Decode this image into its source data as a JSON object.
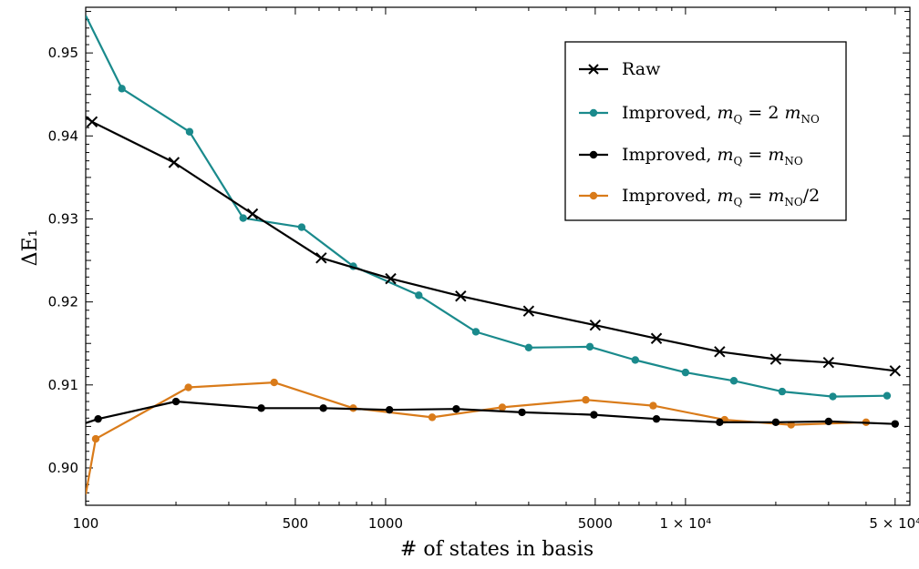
{
  "chart_data": {
    "type": "line",
    "title": "",
    "xlabel": "# of states in basis",
    "ylabel": "ΔE₁",
    "xscale": "log",
    "xlim": [
      100,
      56000
    ],
    "ylim": [
      0.8955,
      0.9555
    ],
    "grid": false,
    "legend_position": "top-right",
    "x_ticks": [
      {
        "value": 100,
        "label": "100"
      },
      {
        "value": 500,
        "label": "500"
      },
      {
        "value": 1000,
        "label": "1000"
      },
      {
        "value": 5000,
        "label": "5000"
      },
      {
        "value": 10000,
        "label": "1 × 10⁴"
      },
      {
        "value": 50000,
        "label": "5 × 10⁴"
      }
    ],
    "y_ticks": [
      {
        "value": 0.9,
        "label": "0.90"
      },
      {
        "value": 0.91,
        "label": "0.91"
      },
      {
        "value": 0.92,
        "label": "0.92"
      },
      {
        "value": 0.93,
        "label": "0.93"
      },
      {
        "value": 0.94,
        "label": "0.94"
      },
      {
        "value": 0.95,
        "label": "0.95"
      }
    ],
    "series": [
      {
        "name": "Raw",
        "legend_label": "Raw",
        "color": "#000000",
        "marker": "x",
        "line_from": 100,
        "line_value": 0.9423,
        "x": [
          105,
          197,
          360,
          610,
          1040,
          1780,
          3000,
          5000,
          8000,
          13000,
          20000,
          30000,
          50000
        ],
        "y": [
          0.9417,
          0.9368,
          0.9306,
          0.9253,
          0.9228,
          0.9207,
          0.9189,
          0.9172,
          0.9156,
          0.914,
          0.9131,
          0.9127,
          0.9117
        ]
      },
      {
        "name": "Improved, m_Q = 2 m_NO",
        "legend_label": "Improved,",
        "legend_eq": "2 m",
        "color": "#1a8a8c",
        "marker": "o",
        "line_from": 100,
        "line_value": 0.9545,
        "x": [
          132,
          222,
          335,
          525,
          780,
          1290,
          2000,
          3000,
          4800,
          6800,
          10000,
          14500,
          21000,
          31000,
          47000
        ],
        "y": [
          0.9457,
          0.9405,
          0.9301,
          0.929,
          0.9243,
          0.9208,
          0.9164,
          0.9145,
          0.9146,
          0.913,
          0.9115,
          0.9105,
          0.9092,
          0.9086,
          0.9087
        ]
      },
      {
        "name": "Improved, m_Q = m_NO",
        "legend_label": "Improved,",
        "legend_eq": "m",
        "color": "#000000",
        "marker": "o",
        "line_from": 100,
        "line_value": 0.9054,
        "x": [
          110,
          200,
          385,
          620,
          1030,
          1720,
          2850,
          4950,
          8000,
          13000,
          20000,
          30000,
          50000
        ],
        "y": [
          0.9059,
          0.908,
          0.9072,
          0.9072,
          0.907,
          0.9071,
          0.9067,
          0.9064,
          0.9059,
          0.9055,
          0.9055,
          0.9056,
          0.9053
        ]
      },
      {
        "name": "Improved, m_Q = m_NO/2",
        "legend_label": "Improved,",
        "legend_eq": "m",
        "legend_suffix": "/2",
        "color": "#d97b1a",
        "marker": "o",
        "line_from": 100,
        "line_value": 0.8968,
        "x": [
          108,
          220,
          425,
          780,
          1430,
          2450,
          4650,
          7800,
          13500,
          22500,
          40000
        ],
        "y": [
          0.9035,
          0.9097,
          0.9103,
          0.9072,
          0.9061,
          0.9073,
          0.9082,
          0.9075,
          0.9058,
          0.9052,
          0.9055
        ]
      }
    ],
    "legend_math": {
      "m": "m",
      "sub_q": "Q",
      "sub_no": "NO",
      "eq": "="
    }
  }
}
